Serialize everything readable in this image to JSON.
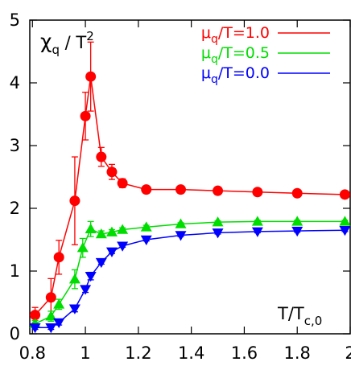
{
  "chart_data": {
    "type": "line",
    "title": "",
    "xlabel": "T/T_c,0",
    "ylabel": "χ_q / T^2",
    "xlim": [
      0.79,
      2.0
    ],
    "ylim": [
      0,
      5
    ],
    "xticks": [
      0.8,
      1.0,
      1.2,
      1.4,
      1.6,
      1.8,
      2.0
    ],
    "xtick_labels": [
      "0.8",
      "1",
      "1.2",
      "1.4",
      "1.6",
      "1.8",
      "2"
    ],
    "yticks": [
      0,
      1,
      2,
      3,
      4,
      5
    ],
    "ytick_labels": [
      "0",
      "1",
      "2",
      "3",
      "4",
      "5"
    ],
    "grid": false,
    "legend_position": "top-right",
    "annotations": {
      "ylabel_main": "χ",
      "ylabel_sub": "q",
      "ylabel_rest": " / T",
      "ylabel_sup": "2",
      "xlabel_main": "T/T",
      "xlabel_sub": "c,0"
    },
    "series": [
      {
        "name": "μq/T=1.0",
        "label_main": "μ",
        "label_sub": "q",
        "label_rest": "/T=1.0",
        "color": "#ff0000",
        "marker": "circle",
        "x": [
          0.81,
          0.87,
          0.9,
          0.96,
          1.0,
          1.02,
          1.06,
          1.1,
          1.14,
          1.23,
          1.36,
          1.5,
          1.65,
          1.8,
          1.98
        ],
        "y": [
          0.3,
          0.58,
          1.22,
          2.12,
          3.47,
          4.1,
          2.82,
          2.58,
          2.4,
          2.3,
          2.3,
          2.28,
          2.26,
          2.24,
          2.22
        ],
        "err": [
          0.12,
          0.3,
          0.27,
          0.7,
          0.38,
          0.55,
          0.15,
          0.12,
          0.07,
          0.04,
          0.03,
          0.03,
          0.03,
          0.03,
          0.03
        ]
      },
      {
        "name": "μq/T=0.5",
        "label_main": "μ",
        "label_sub": "q",
        "label_rest": "/T=0.5",
        "color": "#00dd00",
        "marker": "triangle-up",
        "x": [
          0.81,
          0.87,
          0.9,
          0.96,
          0.99,
          1.02,
          1.06,
          1.1,
          1.14,
          1.23,
          1.36,
          1.5,
          1.65,
          1.8,
          1.98
        ],
        "y": [
          0.16,
          0.28,
          0.47,
          0.87,
          1.37,
          1.67,
          1.59,
          1.62,
          1.66,
          1.7,
          1.75,
          1.78,
          1.79,
          1.79,
          1.79
        ],
        "err": [
          0.05,
          0.08,
          0.08,
          0.15,
          0.15,
          0.12,
          0.05,
          0.04,
          0.03,
          0.03,
          0.02,
          0.02,
          0.02,
          0.02,
          0.02
        ]
      },
      {
        "name": "μq/T=0.0",
        "label_main": "μ",
        "label_sub": "q",
        "label_rest": "/T=0.0",
        "color": "#0000ff",
        "marker": "triangle-down",
        "x": [
          0.81,
          0.87,
          0.9,
          0.96,
          1.0,
          1.02,
          1.06,
          1.1,
          1.14,
          1.23,
          1.36,
          1.5,
          1.65,
          1.8,
          1.98
        ],
        "y": [
          0.1,
          0.1,
          0.18,
          0.4,
          0.71,
          0.92,
          1.14,
          1.31,
          1.4,
          1.5,
          1.57,
          1.61,
          1.63,
          1.64,
          1.65
        ],
        "err": [
          0.03,
          0.03,
          0.04,
          0.05,
          0.05,
          0.06,
          0.03,
          0.03,
          0.02,
          0.02,
          0.02,
          0.02,
          0.02,
          0.02,
          0.02
        ]
      }
    ]
  }
}
